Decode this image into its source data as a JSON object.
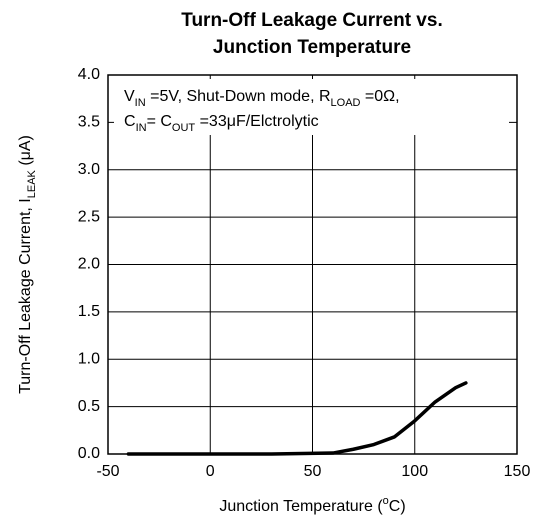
{
  "chart_data": {
    "type": "line",
    "title": [
      "Turn-Off Leakage Current vs.",
      "Junction Temperature"
    ],
    "annotation": [
      [
        {
          "text": "V"
        },
        {
          "text": "IN",
          "sub": true
        },
        {
          "text": " =5V, Shut-Down mode, R"
        },
        {
          "text": "LOAD",
          "sub": true
        },
        {
          "text": " =0Ω,"
        }
      ],
      [
        {
          "text": "C"
        },
        {
          "text": "IN",
          "sub": true
        },
        {
          "text": "= C"
        },
        {
          "text": "OUT",
          "sub": true
        },
        {
          "text": " =33μF/Elctrolytic"
        }
      ]
    ],
    "xlabel": [
      {
        "text": "Junction Temperature ("
      },
      {
        "text": "o",
        "sup": true
      },
      {
        "text": "C)"
      }
    ],
    "ylabel": [
      {
        "text": "Turn-Off Leakage Current, I"
      },
      {
        "text": "LEAK",
        "sub": true
      },
      {
        "text": " (μA)"
      }
    ],
    "x": [
      -40,
      30,
      60,
      70,
      80,
      90,
      100,
      110,
      120,
      125
    ],
    "series": [
      {
        "color": "#000000",
        "values": [
          0,
          0,
          0.01,
          0.05,
          0.1,
          0.18,
          0.35,
          0.55,
          0.7,
          0.75
        ]
      }
    ],
    "xlim": [
      -50,
      150
    ],
    "xticks": [
      -50,
      0,
      50,
      100,
      150
    ],
    "ylim": [
      0,
      4
    ],
    "yticks": [
      {
        "value": 0,
        "label": "0.0"
      },
      {
        "value": 0.5,
        "label": "0.5"
      },
      {
        "value": 1,
        "label": "1.0"
      },
      {
        "value": 1.5,
        "label": "1.5"
      },
      {
        "value": 2,
        "label": "2.0"
      },
      {
        "value": 2.5,
        "label": "2.5"
      },
      {
        "value": 3,
        "label": "3.0"
      },
      {
        "value": 3.5,
        "label": "3.5"
      },
      {
        "value": 4,
        "label": "4.0"
      }
    ],
    "grid": true
  }
}
